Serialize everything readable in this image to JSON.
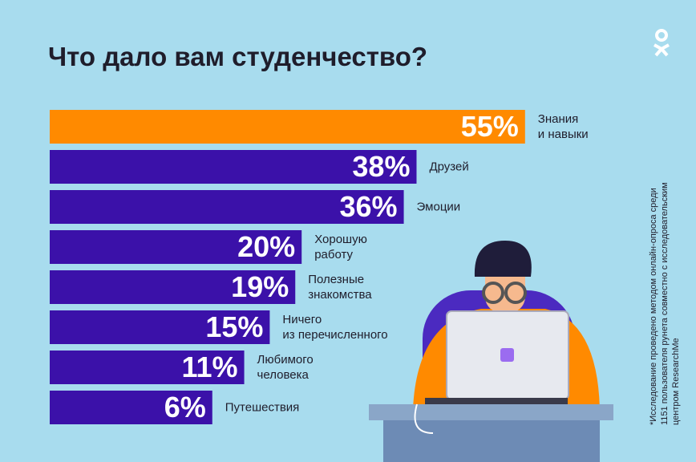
{
  "chart_data": {
    "type": "bar",
    "orientation": "horizontal",
    "title": "Что дало вам студенчество?",
    "categories": [
      "Знания\nи навыки",
      "Друзей",
      "Эмоции",
      "Хорошую\nработу",
      "Полезные\nзнакомства",
      "Ничего\nиз перечисленного",
      "Любимого\nчеловека",
      "Путешествия"
    ],
    "values": [
      55,
      38,
      36,
      20,
      19,
      15,
      11,
      6
    ],
    "value_labels": [
      "55%",
      "38%",
      "36%",
      "20%",
      "19%",
      "15%",
      "11%",
      "6%"
    ],
    "colors": [
      "#ff8a00",
      "#3b11a9",
      "#3b11a9",
      "#3b11a9",
      "#3b11a9",
      "#3b11a9",
      "#3b11a9",
      "#3b11a9"
    ],
    "note": "*Исследование проведено методом онлайн-опроса среди 1151 пользователя рунета совместно с исследовательским центром ResearchMe"
  }
}
